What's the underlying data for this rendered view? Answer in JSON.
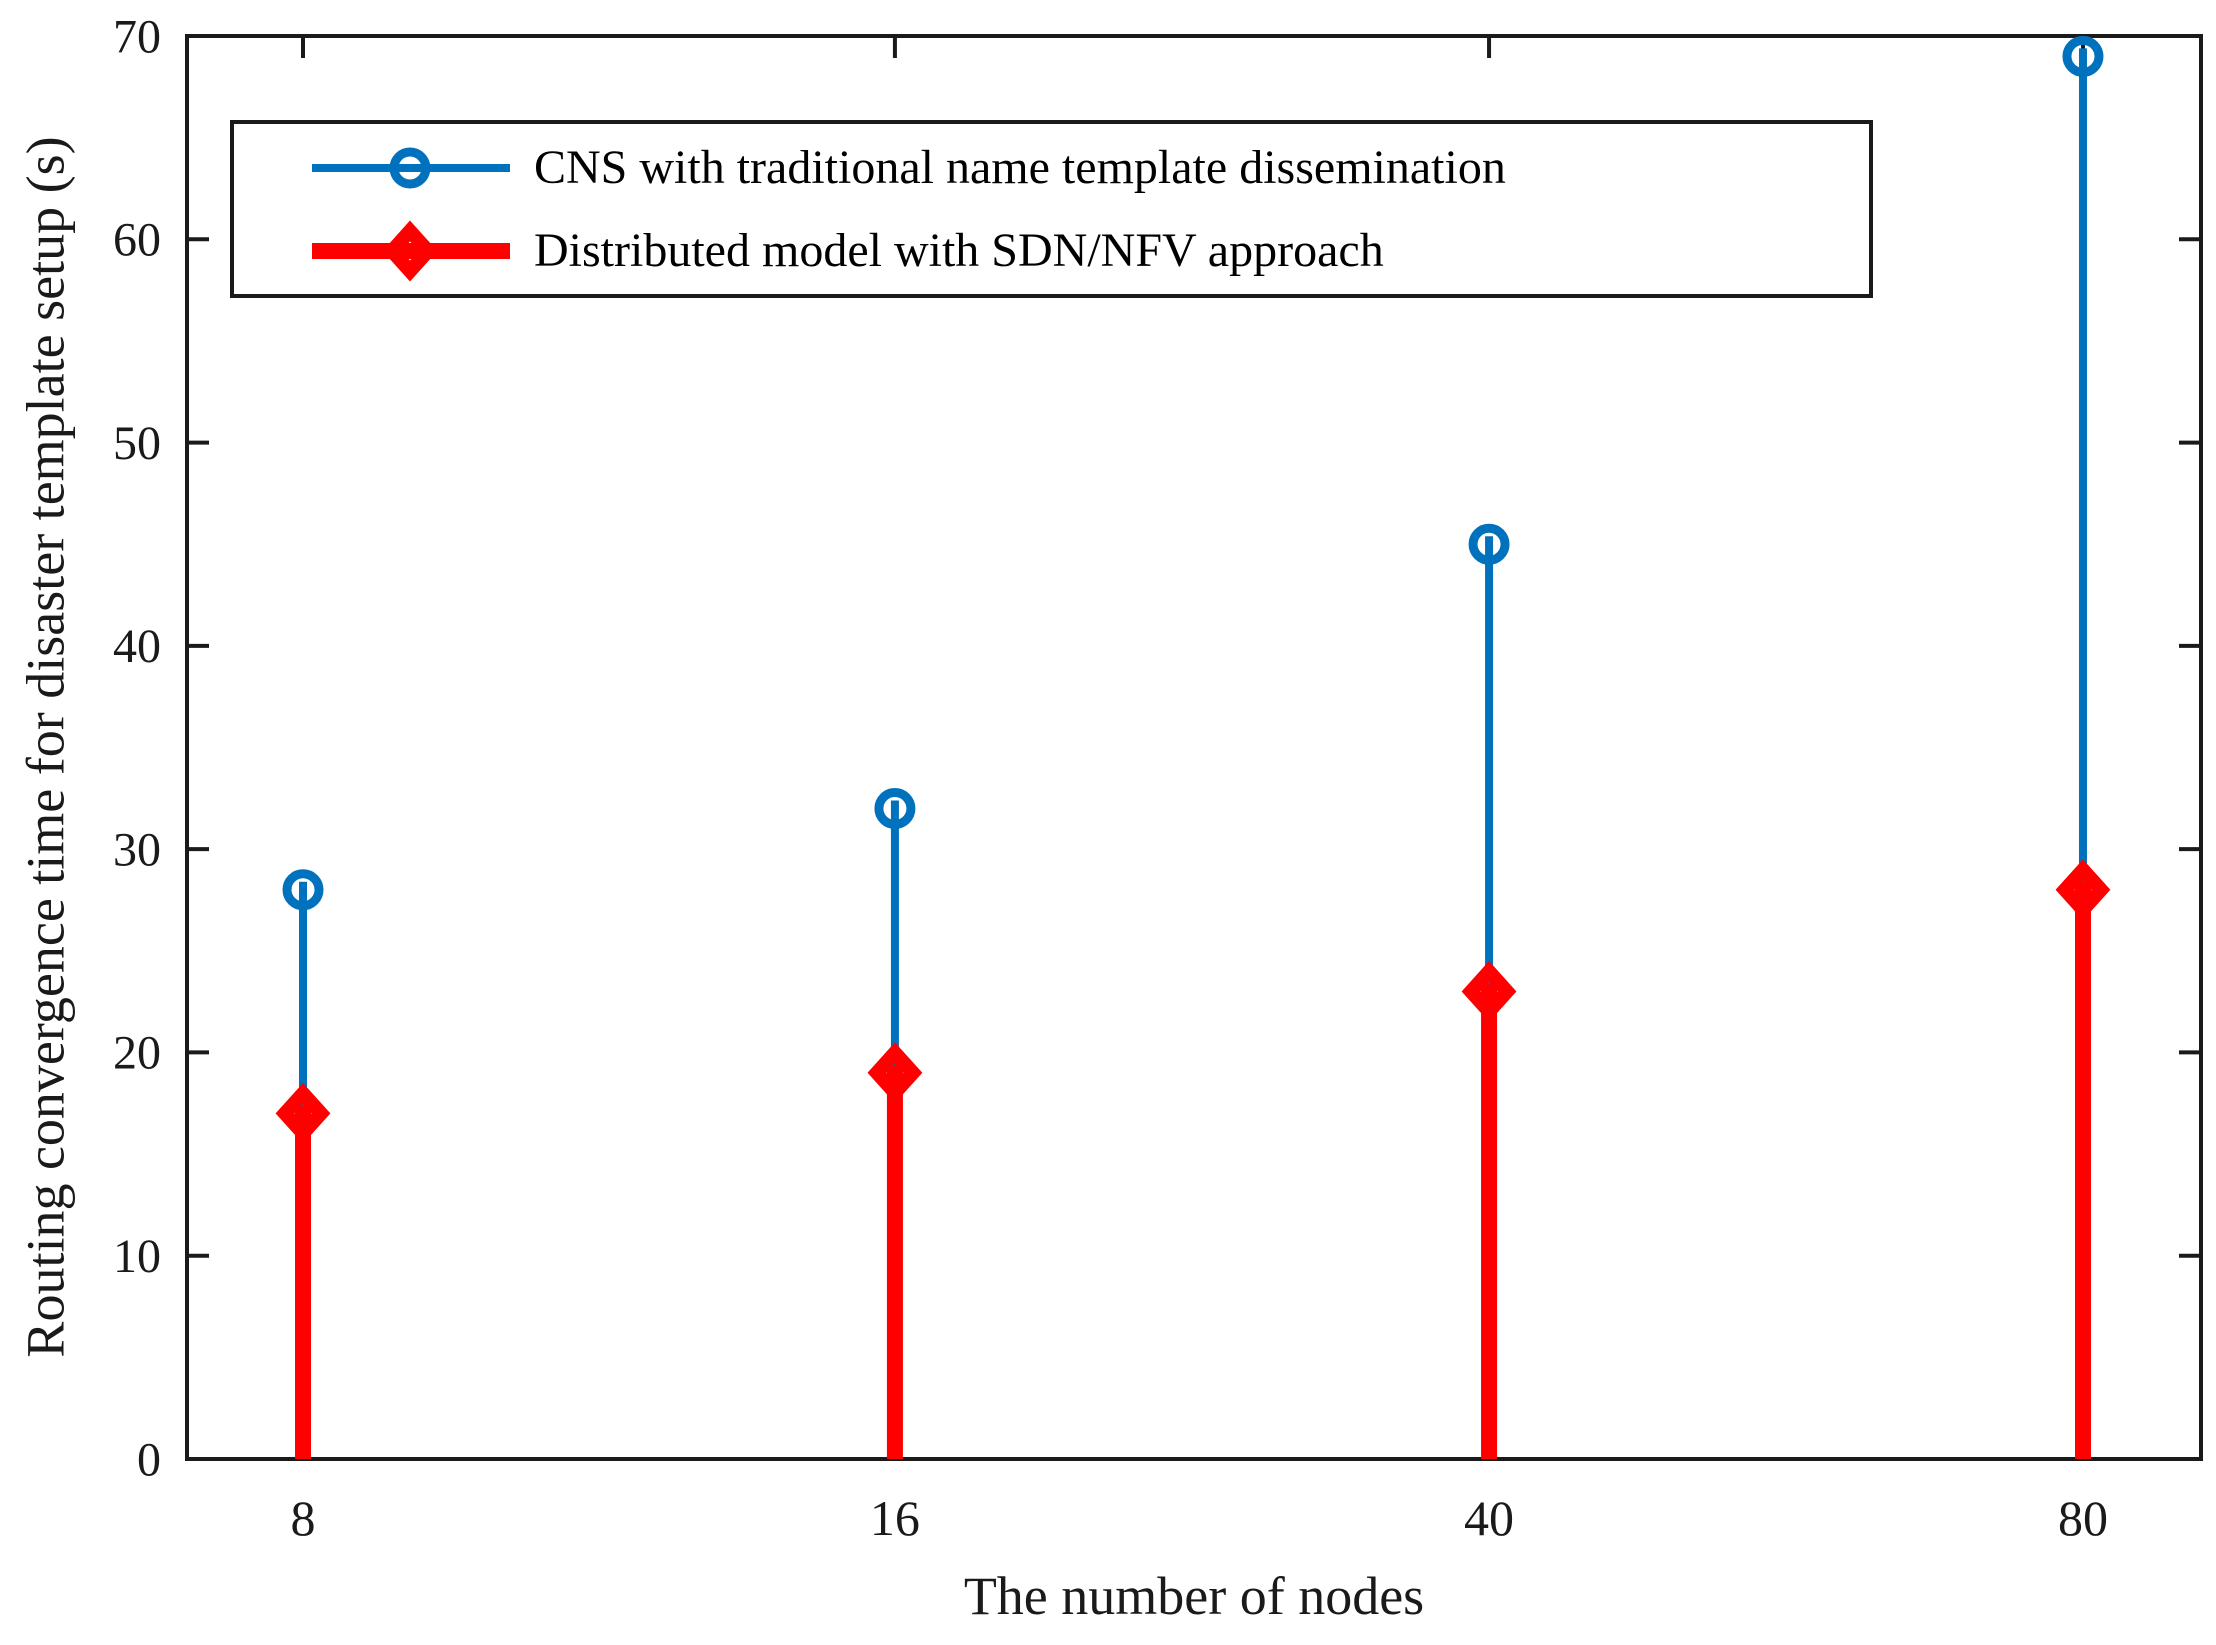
{
  "figure": {
    "background": "#ffffff"
  },
  "chart_data": {
    "type": "stem",
    "categories": [
      "8",
      "16",
      "40",
      "80"
    ],
    "x": [
      8,
      16,
      40,
      80
    ],
    "series": [
      {
        "name": "CNS with traditional name template dissemination",
        "marker": "circle",
        "color": "#0072BD",
        "line_width": 8,
        "values": [
          28,
          32,
          45,
          69
        ]
      },
      {
        "name": "Distributed model with SDN/NFV approach",
        "marker": "diamond",
        "color": "#FF0000",
        "line_width": 16,
        "values": [
          17,
          19,
          23,
          28
        ]
      }
    ],
    "title": "",
    "xlabel": "The number of nodes",
    "ylabel": "Routing convergence time for disaster template setup (s)",
    "ylim": [
      0,
      70
    ],
    "yticks": [
      0,
      10,
      20,
      30,
      40,
      50,
      60,
      70
    ],
    "grid": false,
    "legend_position": "upper left",
    "axis_color": "#1a1a1a",
    "tick_direction": "in",
    "box": true
  }
}
